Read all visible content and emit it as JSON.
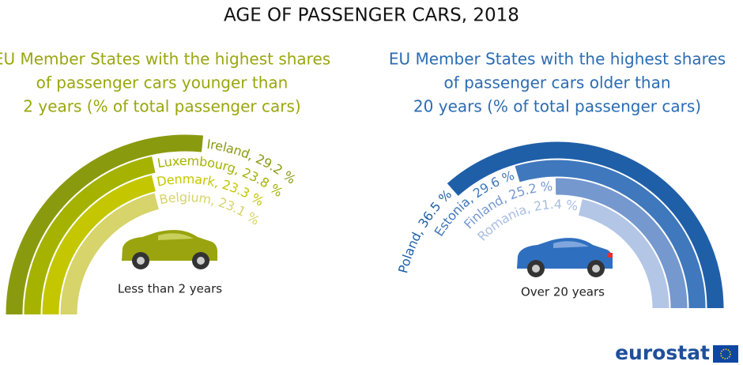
{
  "title": "AGE OF PASSENGER CARS, 2018",
  "logo": "eurostat",
  "chart_data": [
    {
      "type": "radial-bar",
      "subtitle": [
        "EU Member States with the highest shares",
        "of passenger cars younger than",
        "2 years (% of total passenger cars)"
      ],
      "annotation": "Less than 2 years",
      "categories": [
        "Ireland,",
        "Luxembourg,",
        "Denmark,",
        "Belgium,"
      ],
      "values": [
        29.2,
        23.8,
        23.3,
        23.1
      ],
      "value_labels": [
        "29.2 %",
        "23.8 %",
        "23.3 %",
        "23.1 %"
      ],
      "colors": [
        "#8a9a0f",
        "#a5b300",
        "#c4c700",
        "#d6d46a"
      ],
      "ylim": [
        0,
        55
      ]
    },
    {
      "type": "radial-bar",
      "subtitle": [
        "EU Member States with the highest shares",
        "of passenger cars older than",
        "20 years (% of total passenger cars)"
      ],
      "annotation": "Over 20 years",
      "categories": [
        "Poland,",
        "Estonia,",
        "Finland,",
        "Romania,"
      ],
      "values": [
        36.5,
        29.6,
        25.2,
        21.4
      ],
      "value_labels": [
        "36.5 %",
        "29.6 %",
        "25.2 %",
        "21.4 %"
      ],
      "colors": [
        "#1f5fa8",
        "#3f78bd",
        "#7598cf",
        "#b3c6e6"
      ],
      "ylim": [
        0,
        50
      ]
    }
  ]
}
